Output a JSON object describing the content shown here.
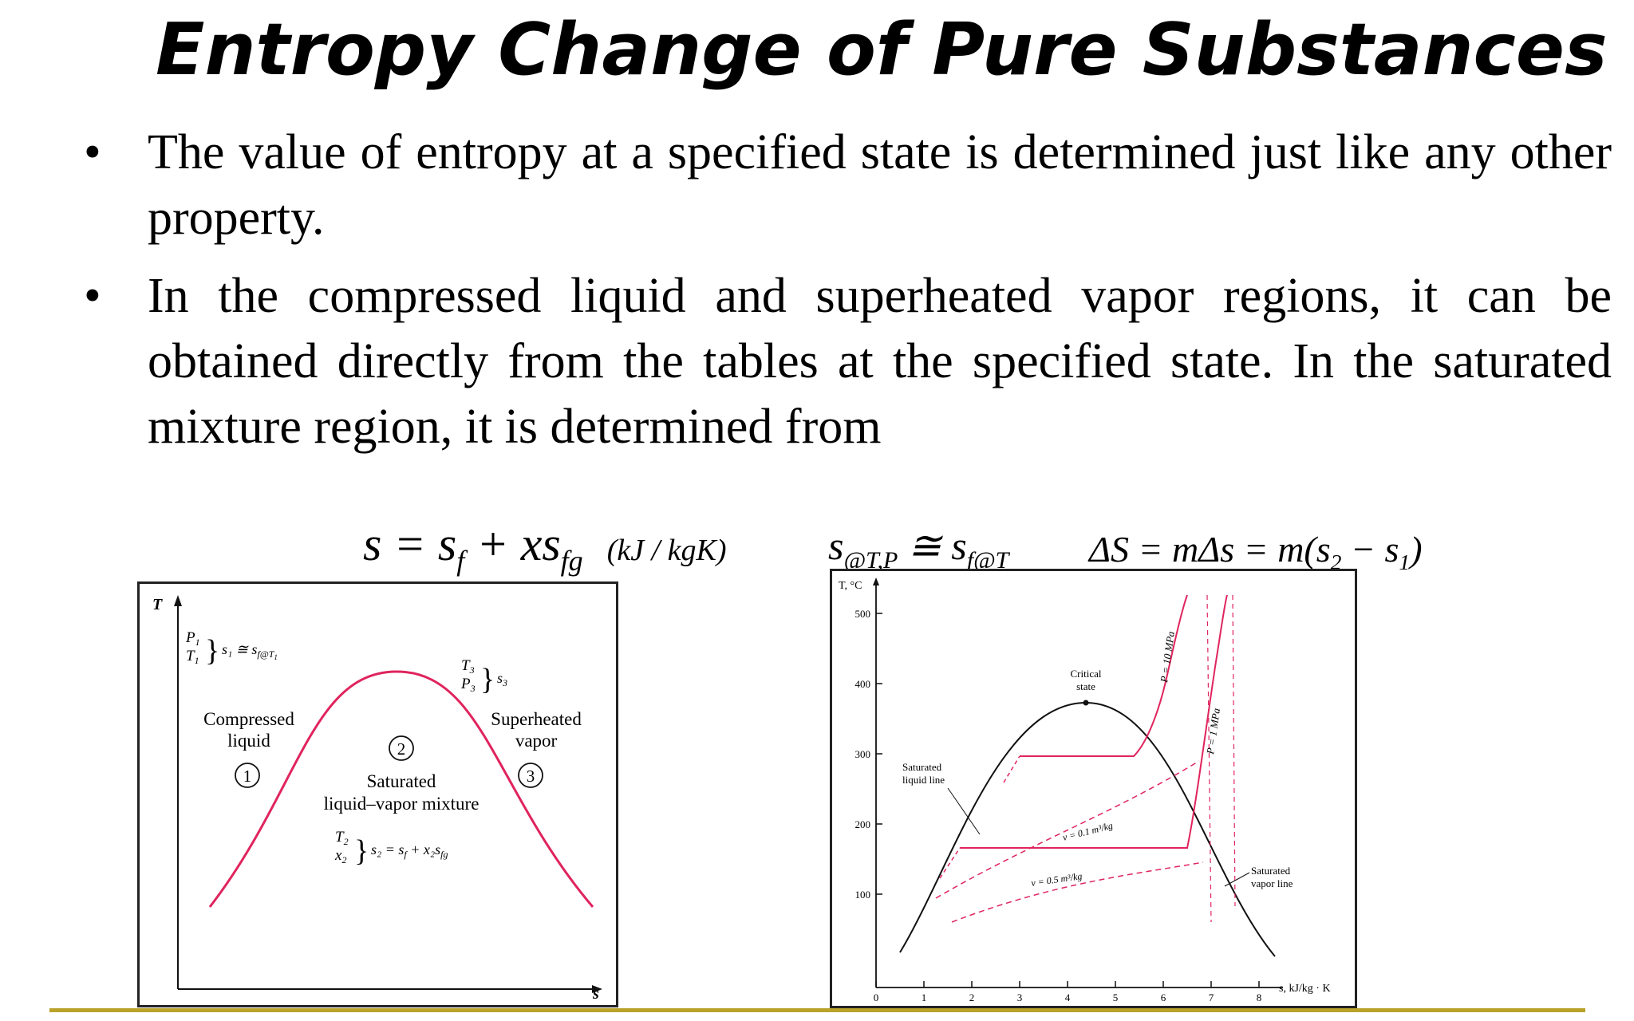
{
  "slide": {
    "title": "Entropy Change of Pure Substances",
    "bullets": [
      "The value of entropy at a specified state is determined just like any other property.",
      "In the compressed liquid and superheated vapor regions, it can be obtained directly from the tables at the specified state. In the saturated mixture region, it is determined from"
    ],
    "bullet_symbol": "•"
  },
  "equations": {
    "eq1_main": "s = s",
    "eq1_f": "f",
    "eq1_plus": " + xs",
    "eq1_fg": "fg",
    "eq1_units": "(kJ / kgK)",
    "eq2_s": "s",
    "eq2_sub1": "@T,P",
    "eq2_approx": " ≅ s",
    "eq2_sub2": "f@T",
    "eq3": "ΔS = mΔs = m(s",
    "eq3_sub2": "2",
    "eq3_mid": " − s",
    "eq3_sub1": "1",
    "eq3_end": ")"
  },
  "left_diagram": {
    "axis_T": "T",
    "axis_s": "s",
    "state1_labels": [
      "P",
      "1",
      "T",
      "1"
    ],
    "state1_relation": "s₁ ≅ s",
    "state1_sub": "f@T",
    "state1_sub2": "1",
    "compressed_liquid": [
      "Compressed",
      "liquid"
    ],
    "region1_num": "1",
    "region2_num": "2",
    "region3_num": "3",
    "state3_labels": [
      "T",
      "3",
      "P",
      "3"
    ],
    "state3_s": "s",
    "state3_s_sub": "3",
    "superheated_vapor": [
      "Superheated",
      "vapor"
    ],
    "saturated_mixture": [
      "Saturated",
      "liquid–vapor mixture"
    ],
    "state2_labels": [
      "T",
      "2",
      "x",
      "2"
    ],
    "state2_relation": "s₂ = s",
    "state2_rel_f": "f",
    "state2_rel_plus": " + x₂s",
    "state2_rel_fg": "fg",
    "colors": {
      "dome": "#e0245e"
    }
  },
  "right_diagram": {
    "axis_T_label": "T, °C",
    "axis_s_label": "s, kJ/kg · K",
    "y_ticks": [
      "500",
      "400",
      "300",
      "200",
      "100"
    ],
    "x_ticks": [
      "0",
      "1",
      "2",
      "3",
      "4",
      "5",
      "6",
      "7",
      "8"
    ],
    "critical_state": [
      "Critical",
      "state"
    ],
    "saturated_liquid_line": [
      "Saturated",
      "liquid line"
    ],
    "saturated_vapor_line": [
      "Saturated",
      "vapor line"
    ],
    "p_10mpa": "P = 10 MPa",
    "p_1mpa": "P = 1 MPa",
    "v_01": "v = 0.1 m³/kg",
    "v_05": "v = 0.5 m³/kg",
    "colors": {
      "dome": "#111111",
      "isobar": "#e0245e"
    }
  }
}
